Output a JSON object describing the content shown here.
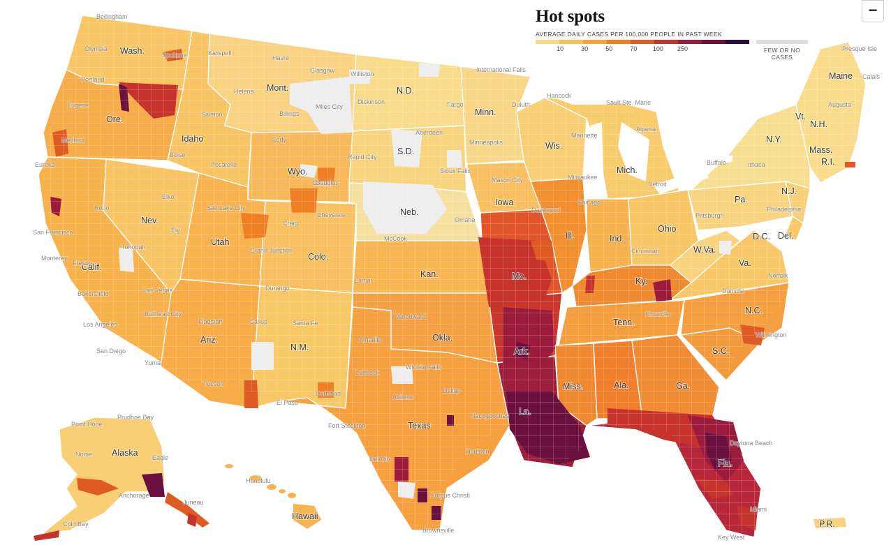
{
  "legend": {
    "title": "Hot spots",
    "subtitle": "AVERAGE DAILY CASES PER 100,000 PEOPLE IN PAST WEEK",
    "ticks": [
      "10",
      "30",
      "50",
      "70",
      "100",
      "250"
    ],
    "no_cases_label": "FEW OR NO CASES",
    "colors": [
      "#f6dc86",
      "#f8bf58",
      "#f7a03e",
      "#f07e24",
      "#e05a23",
      "#c6322c",
      "#9c1b3c",
      "#6b0f3e",
      "#2b0f38"
    ],
    "no_cases_color": "#dedede"
  },
  "controls": {
    "zoom_out_label": "−"
  },
  "state_labels": {
    "wash": "Wash.",
    "ore": "Ore.",
    "calif": "Calif.",
    "idaho": "Idaho",
    "nev": "Nev.",
    "mont": "Mont.",
    "wyo": "Wyo.",
    "utah": "Utah",
    "ariz": "Ariz.",
    "colo": "Colo.",
    "nm": "N.M.",
    "nd": "N.D.",
    "sd": "S.D.",
    "neb": "Neb.",
    "kan": "Kan.",
    "okla": "Okla.",
    "texas": "Texas",
    "minn": "Minn.",
    "iowa": "Iowa",
    "mo": "Mo.",
    "ark": "Ark.",
    "la": "La.",
    "wis": "Wis.",
    "ill": "Ill.",
    "mich": "Mich.",
    "ind": "Ind.",
    "ohio": "Ohio",
    "ky": "Ky.",
    "tenn": "Tenn.",
    "miss": "Miss.",
    "ala": "Ala.",
    "ga": "Ga.",
    "fla": "Fla.",
    "sc": "S.C.",
    "nc": "N.C.",
    "va": "Va.",
    "wva": "W.Va.",
    "dc": "D.C.",
    "del": "Del.",
    "pa": "Pa.",
    "ny": "N.Y.",
    "nj": "N.J.",
    "vt": "Vt.",
    "nh": "N.H.",
    "maine": "Maine",
    "mass": "Mass.",
    "ri": "R.I.",
    "alaska": "Alaska",
    "hawaii": "Hawaii",
    "pr": "P.R."
  },
  "city_labels": [
    "Bellingham",
    "Olympia",
    "Spokane",
    "Kalispell",
    "Havre",
    "Glasgow",
    "Williston",
    "International Falls",
    "Presque Isle",
    "Portland",
    "Helena",
    "Dickinson",
    "Miles City",
    "Fargo",
    "Duluth",
    "Hancock",
    "Sault Ste. Marie",
    "Eugene",
    "Salmon",
    "Billings",
    "Aberdeen",
    "Alpena",
    "Augusta",
    "Calais",
    "Medford",
    "Boise",
    "Cody",
    "Minneapolis",
    "Marinette",
    "Pocatello",
    "Rapid City",
    "Eureka",
    "Casper",
    "Sioux Falls",
    "Milwaukee",
    "Detroit",
    "Buffalo",
    "Ithaca",
    "Mason City",
    "Davenport",
    "Chicago",
    "Reno",
    "Elko",
    "Douglas",
    "Salt Lake City",
    "Cheyenne",
    "Pittsburgh",
    "Philadelphia",
    "Omaha",
    "San Francisco",
    "Ely",
    "Craig",
    "McCook",
    "Grand Junction",
    "Cincinnati",
    "Monterey",
    "Tonopah",
    "Fresno",
    "Lamar",
    "Danville",
    "Las Vegas",
    "Durango",
    "Norfolk",
    "Bakersfield",
    "Bullhead City",
    "Flagstaff",
    "Gallup",
    "Santa Fe",
    "Knoxville",
    "Woodward",
    "Los Angeles",
    "Amarillo",
    "Wilmington",
    "San Diego",
    "Yuma",
    "Lubbock",
    "Wichita Falls",
    "Tucson",
    "Carlsbad",
    "Abilene",
    "El Paso",
    "Fort Stockton",
    "Dallas",
    "Nacogdoches",
    "Point Hope",
    "Prudhoe Bay",
    "Nome",
    "Eagle",
    "Del Rio",
    "Houston",
    "Daytona Beach",
    "Honolulu",
    "Corpus Christi",
    "Anchorage",
    "Juneau",
    "Cold Bay",
    "Brownsville",
    "Miami",
    "Key West"
  ]
}
